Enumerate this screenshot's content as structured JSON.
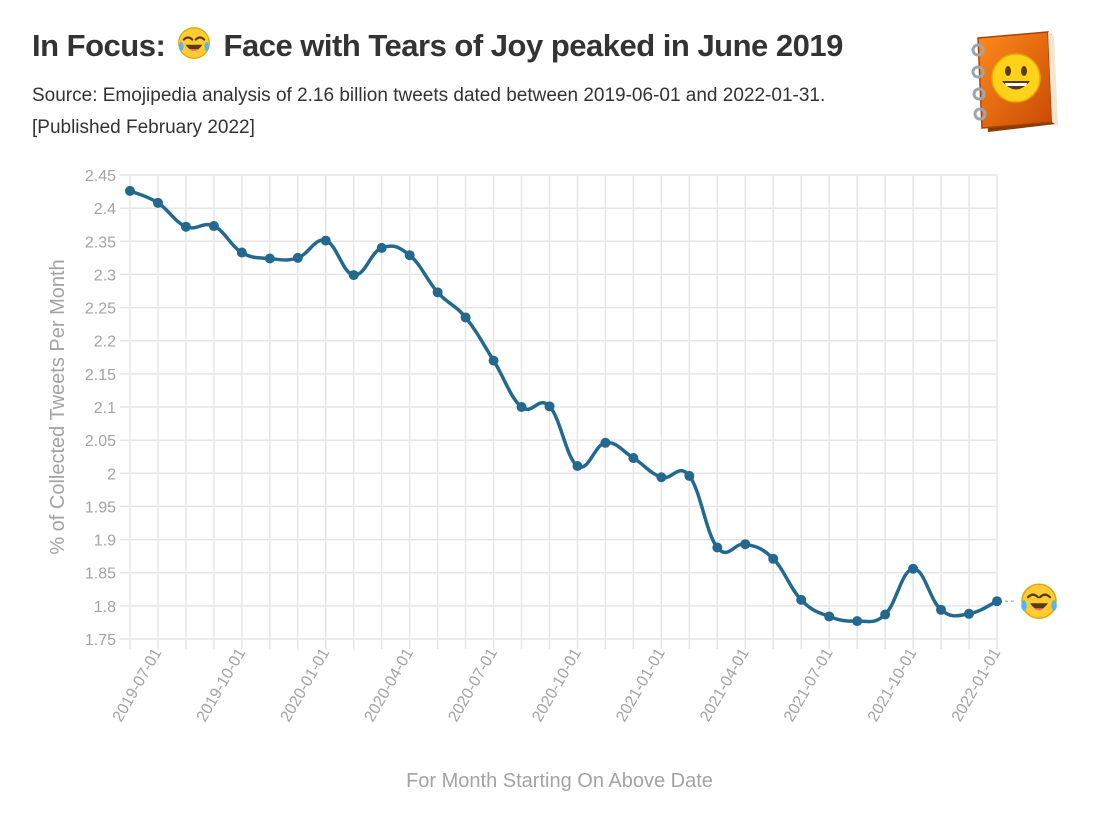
{
  "header": {
    "title_prefix": "In Focus:",
    "title_suffix": "Face with Tears of Joy peaked in June 2019",
    "title_emoji": "face-with-tears-of-joy",
    "subtitle_line1": "Source: Emojipedia analysis of 2.16 billion tweets dated between 2019-06-01 and 2022-01-31.",
    "subtitle_line2": "[Published February 2022]",
    "logo_icon": "emojipedia-book-icon"
  },
  "colors": {
    "line": "#23698f",
    "grid": "#e6e6e6",
    "axis_text": "#a3a3a3",
    "title": "#333333"
  },
  "chart_data": {
    "type": "line",
    "title": "In Focus: Face with Tears of Joy peaked in June 2019",
    "xlabel": "For Month Starting On Above Date",
    "ylabel": "% of Collected Tweets Per Month",
    "ylim": [
      1.75,
      2.45
    ],
    "yticks": [
      1.75,
      1.8,
      1.85,
      1.9,
      1.95,
      2,
      2.05,
      2.1,
      2.15,
      2.2,
      2.25,
      2.3,
      2.35,
      2.4,
      2.45
    ],
    "xtick_labels": [
      "2019-07-01",
      "2019-10-01",
      "2020-01-01",
      "2020-04-01",
      "2020-07-01",
      "2020-10-01",
      "2021-01-01",
      "2021-04-01",
      "2021-07-01",
      "2021-10-01",
      "2022-01-01"
    ],
    "xtick_indices": [
      1,
      4,
      7,
      10,
      13,
      16,
      19,
      22,
      25,
      28,
      31
    ],
    "end_marker_icon": "face-with-tears-of-joy",
    "series": [
      {
        "name": "Face with Tears of Joy",
        "x": [
          "2019-06-01",
          "2019-07-01",
          "2019-08-01",
          "2019-09-01",
          "2019-10-01",
          "2019-11-01",
          "2019-12-01",
          "2020-01-01",
          "2020-02-01",
          "2020-03-01",
          "2020-04-01",
          "2020-05-01",
          "2020-06-01",
          "2020-07-01",
          "2020-08-01",
          "2020-09-01",
          "2020-10-01",
          "2020-11-01",
          "2020-12-01",
          "2021-01-01",
          "2021-02-01",
          "2021-03-01",
          "2021-04-01",
          "2021-05-01",
          "2021-06-01",
          "2021-07-01",
          "2021-08-01",
          "2021-09-01",
          "2021-10-01",
          "2021-11-01",
          "2021-12-01",
          "2022-01-01"
        ],
        "values": [
          2.426,
          2.408,
          2.372,
          2.373,
          2.333,
          2.324,
          2.325,
          2.351,
          2.299,
          2.34,
          2.329,
          2.273,
          2.235,
          2.17,
          2.1,
          2.101,
          2.011,
          2.046,
          2.023,
          1.994,
          1.996,
          1.888,
          1.893,
          1.871,
          1.809,
          1.784,
          1.777,
          1.787,
          1.856,
          1.794,
          1.788,
          1.807
        ]
      }
    ]
  }
}
